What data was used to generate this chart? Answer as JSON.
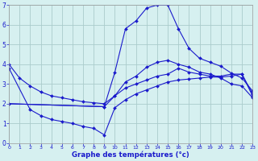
{
  "background_color": "#d6f0f0",
  "line_color": "#1a1acc",
  "grid_color": "#aacccc",
  "xlabel": "Graphe des températures (°c)",
  "xlim": [
    0,
    23
  ],
  "ylim": [
    0,
    7
  ],
  "xticks": [
    0,
    1,
    2,
    3,
    4,
    5,
    6,
    7,
    8,
    9,
    10,
    11,
    12,
    13,
    14,
    15,
    16,
    17,
    18,
    19,
    20,
    21,
    22,
    23
  ],
  "yticks": [
    0,
    1,
    2,
    3,
    4,
    5,
    6,
    7
  ],
  "curves": [
    {
      "x": [
        0,
        1,
        2,
        3,
        4,
        5,
        6,
        7,
        8,
        9,
        10,
        11,
        12,
        13,
        14,
        15,
        16,
        17,
        18,
        19,
        20,
        21,
        22,
        23
      ],
      "y": [
        4.0,
        3.3,
        2.9,
        2.6,
        2.4,
        2.3,
        2.2,
        2.1,
        2.05,
        2.0,
        2.4,
        2.8,
        3.0,
        3.2,
        3.4,
        3.5,
        3.8,
        3.6,
        3.5,
        3.4,
        3.4,
        3.5,
        3.5,
        2.5
      ]
    },
    {
      "x": [
        0,
        2,
        3,
        4,
        5,
        6,
        7,
        8,
        9,
        10,
        11,
        12,
        13,
        14,
        15,
        16,
        17,
        18,
        19,
        20,
        21,
        22,
        23
      ],
      "y": [
        3.8,
        1.7,
        1.4,
        1.2,
        1.1,
        1.0,
        0.85,
        0.75,
        0.42,
        1.8,
        2.2,
        2.5,
        2.7,
        2.9,
        3.1,
        3.2,
        3.25,
        3.3,
        3.35,
        3.35,
        3.4,
        3.5,
        2.4
      ]
    },
    {
      "x": [
        0,
        9,
        10,
        11,
        12,
        13,
        14,
        15,
        16,
        17,
        18,
        19,
        20,
        21,
        22,
        23
      ],
      "y": [
        2.0,
        1.85,
        3.6,
        5.8,
        6.2,
        6.85,
        7.0,
        7.0,
        5.8,
        4.8,
        4.3,
        4.1,
        3.9,
        3.55,
        3.3,
        2.65
      ]
    },
    {
      "x": [
        0,
        9,
        10,
        11,
        12,
        13,
        14,
        15,
        16,
        17,
        18,
        19,
        20,
        21,
        22,
        23
      ],
      "y": [
        2.0,
        1.85,
        2.4,
        3.1,
        3.4,
        3.85,
        4.1,
        4.2,
        4.0,
        3.85,
        3.6,
        3.5,
        3.3,
        3.0,
        2.9,
        2.3
      ]
    }
  ]
}
